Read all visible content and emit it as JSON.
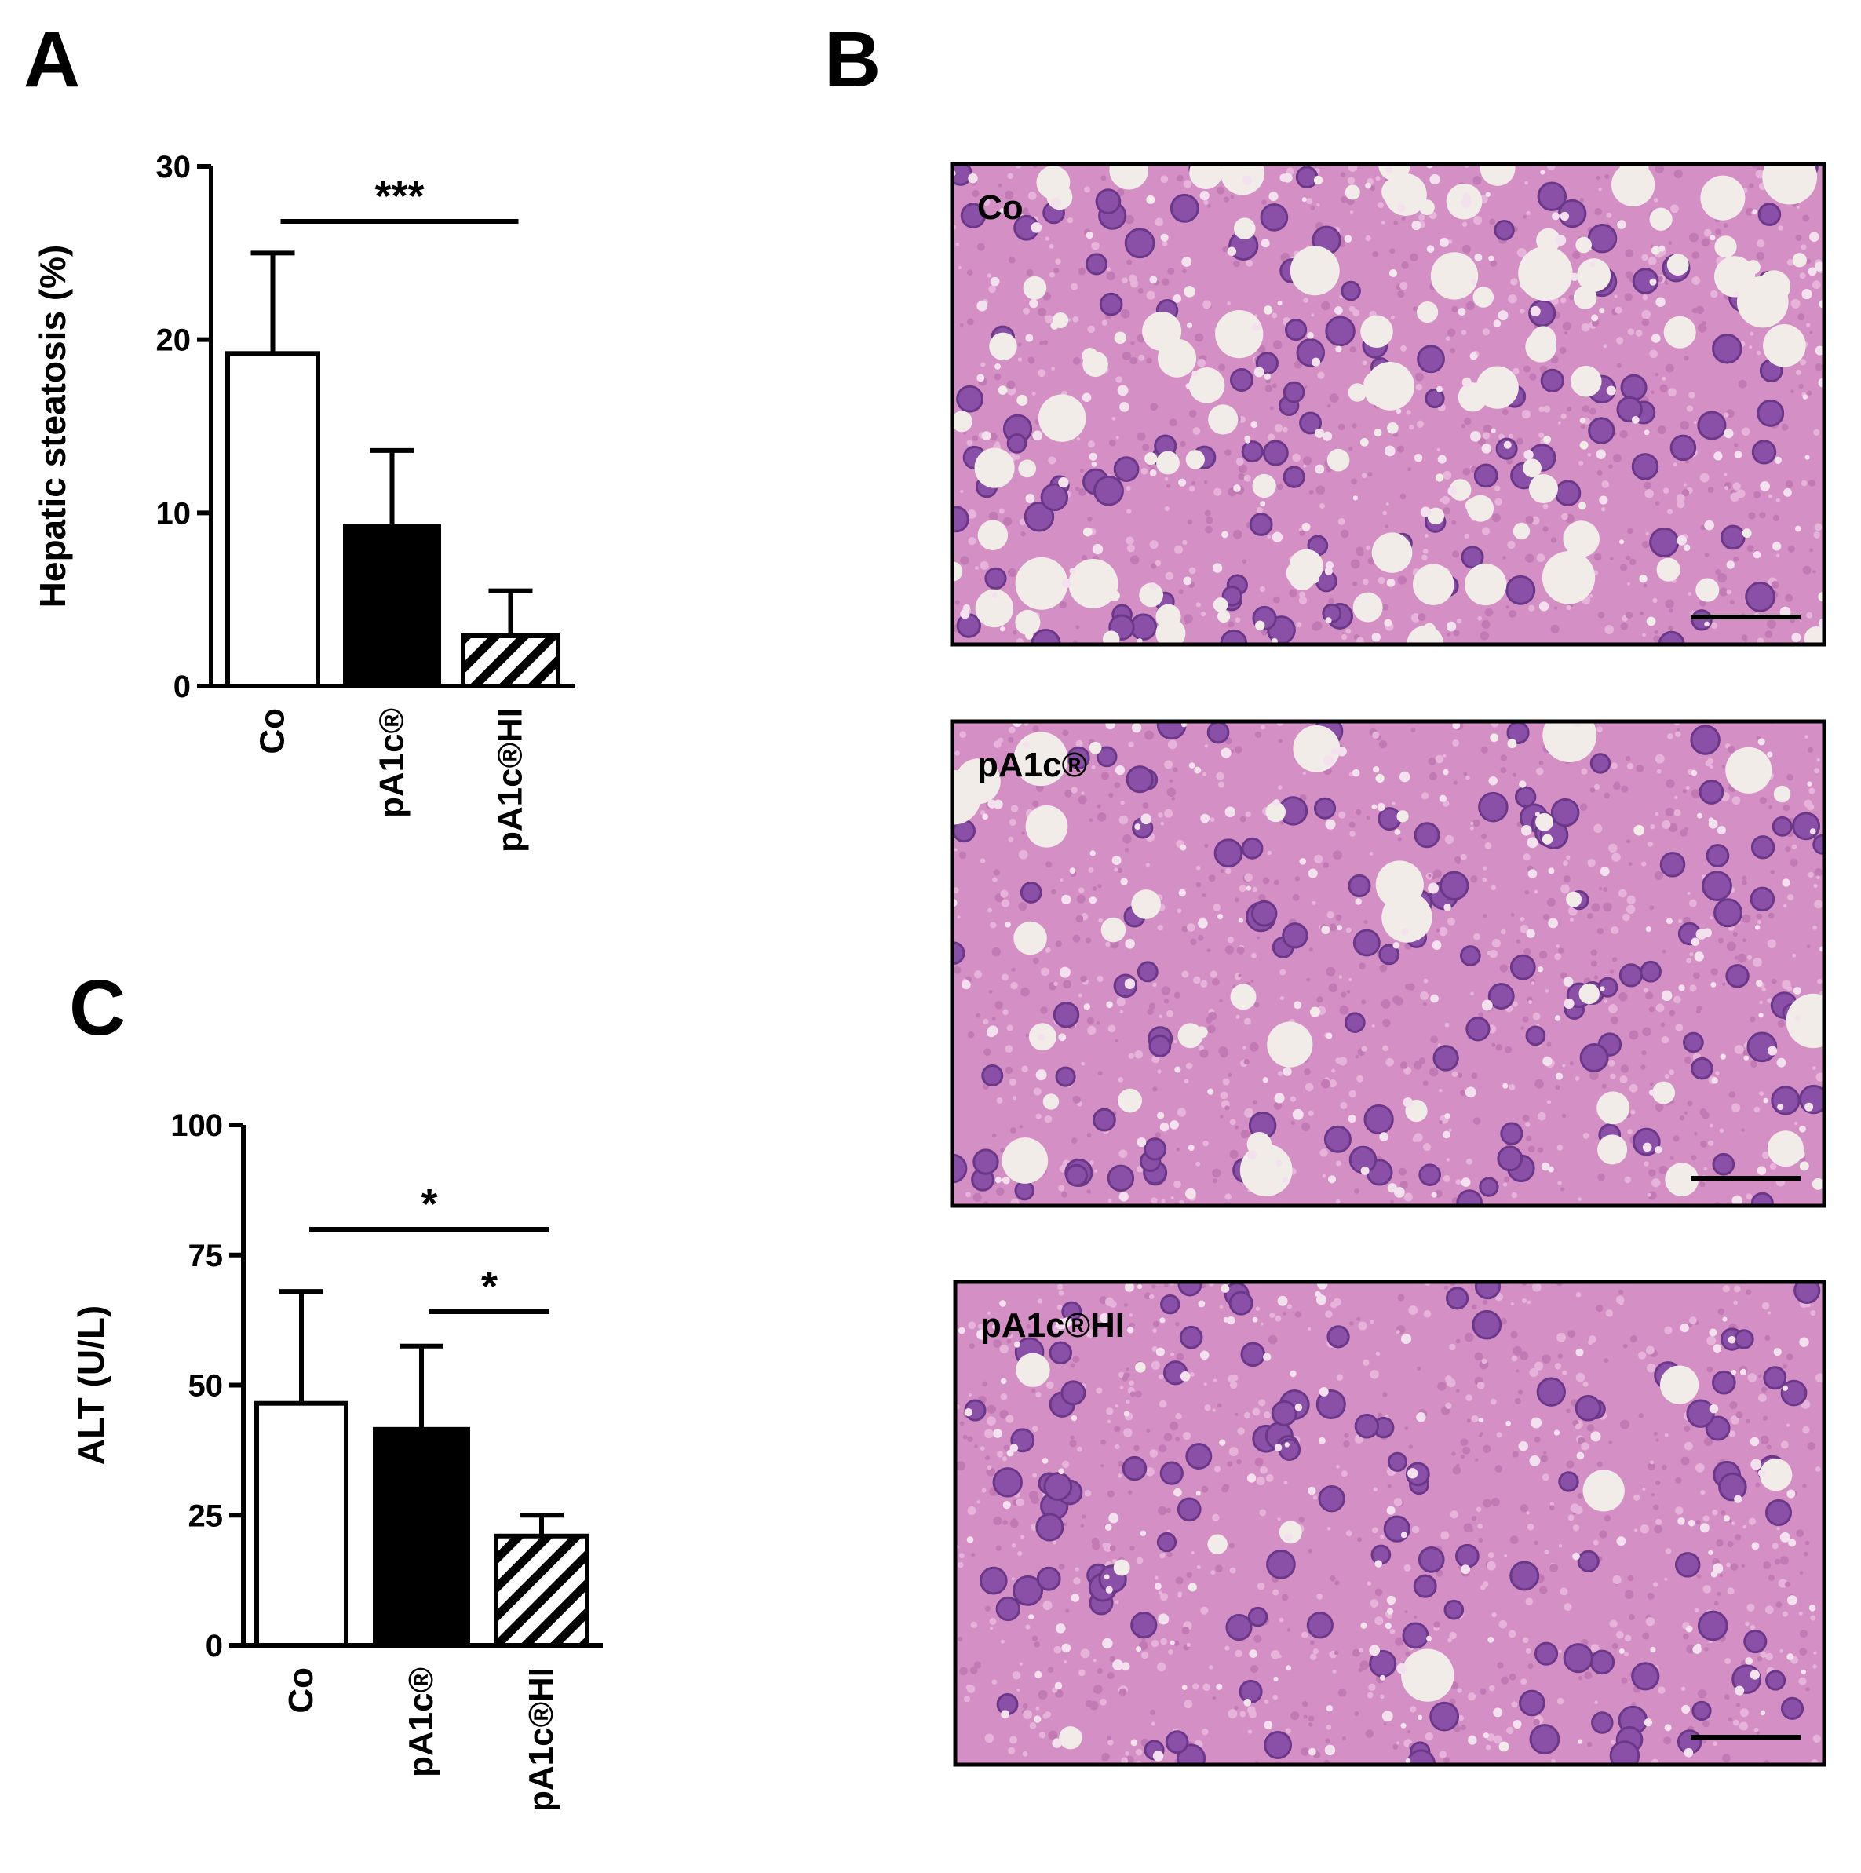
{
  "panel_labels": [
    "A",
    "B",
    "C"
  ],
  "micrograph_labels": [
    "Co",
    "pA1c®",
    "pA1c®HI"
  ],
  "chart_data": [
    {
      "type": "bar",
      "y_label": "Hepatic steatosis (%)",
      "categories": [
        "Co",
        "pA1c®",
        "pA1c®HI"
      ],
      "values": [
        19.2,
        9.2,
        2.9
      ],
      "errors": [
        5.8,
        4.4,
        2.6
      ],
      "colors": [
        "#ffffff",
        "#000000",
        "hatch"
      ],
      "ylim": [
        0,
        30
      ],
      "yticks": [
        0,
        10,
        20,
        30
      ],
      "annotations": [
        {
          "text": "***",
          "between": [
            "Co",
            "pA1c®HI"
          ]
        }
      ]
    },
    {
      "type": "bar",
      "y_label": "ALT (U/L)",
      "categories": [
        "Co",
        "pA1c®",
        "pA1c®HI"
      ],
      "values": [
        46.5,
        41.5,
        21
      ],
      "errors": [
        21.5,
        16,
        4
      ],
      "colors": [
        "#ffffff",
        "#000000",
        "hatch"
      ],
      "ylim": [
        0,
        100
      ],
      "yticks": [
        0,
        25,
        50,
        75,
        100
      ],
      "annotations": [
        {
          "text": "*",
          "between": [
            "Co",
            "pA1c®HI"
          ]
        },
        {
          "text": "*",
          "between": [
            "pA1c®",
            "pA1c®HI"
          ]
        }
      ]
    }
  ]
}
